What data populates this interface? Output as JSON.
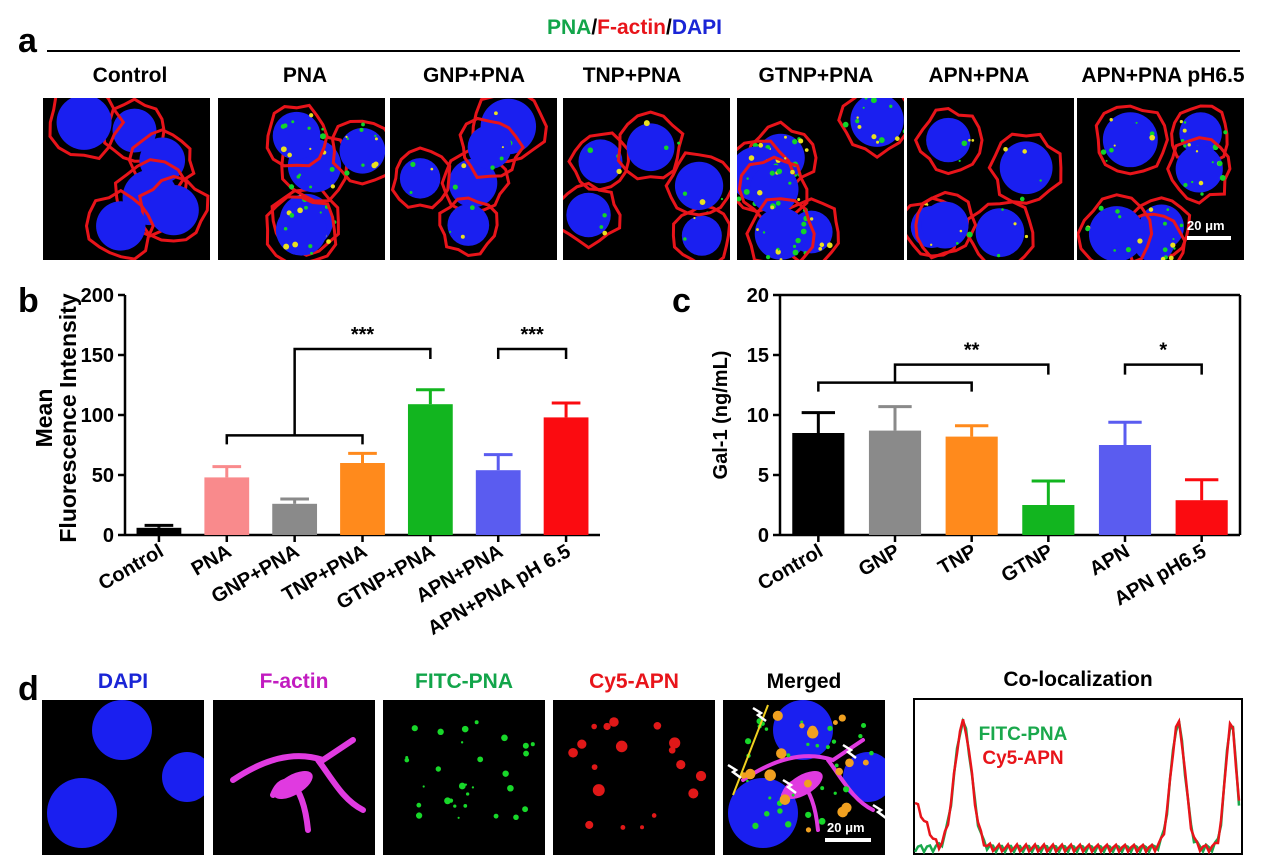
{
  "panel_a": {
    "letter": "a",
    "title_parts": [
      {
        "text": "PNA",
        "color": "#12a54a"
      },
      {
        "text": "/",
        "color": "#000000"
      },
      {
        "text": "F-actin",
        "color": "#e8141a"
      },
      {
        "text": "/",
        "color": "#000000"
      },
      {
        "text": "DAPI",
        "color": "#1a25d6"
      }
    ],
    "columns": [
      "Control",
      "PNA",
      "GNP+PNA",
      "TNP+PNA",
      "GTNP+PNA",
      "APN+PNA",
      "APN+PNA pH6.5"
    ],
    "scale_bar": "20 μm"
  },
  "panel_d": {
    "letter": "d",
    "columns": [
      {
        "label": "DAPI",
        "color": "#1a25d6"
      },
      {
        "label": "F-actin",
        "color": "#c21cc0"
      },
      {
        "label": "FITC-PNA",
        "color": "#12a54a"
      },
      {
        "label": "Cy5-APN",
        "color": "#e8141a"
      },
      {
        "label": "Merged",
        "color": "#000000"
      }
    ],
    "scale_bar": "20 μm",
    "coloc_title": "Co-localization",
    "coloc_legend": [
      {
        "label": "FITC-PNA",
        "color": "#1aa84c"
      },
      {
        "label": "Cy5-APN",
        "color": "#e8141a"
      }
    ]
  },
  "chart_data": [
    {
      "letter": "b",
      "type": "bar",
      "ylabel_lines": [
        "Mean",
        "Fluorescence Intensity"
      ],
      "categories": [
        "Control",
        "PNA",
        "GNP+PNA",
        "TNP+PNA",
        "GTNP+PNA",
        "APN+PNA",
        "APN+PNA pH 6.5"
      ],
      "values": [
        6,
        48,
        26,
        60,
        109,
        54,
        98
      ],
      "errors": [
        2,
        9,
        4,
        8,
        12,
        13,
        12
      ],
      "colors": [
        "#000000",
        "#f98a8c",
        "#8a8a8a",
        "#ff8a1c",
        "#12b51f",
        "#5a5cf0",
        "#fb0b10"
      ],
      "ylim": [
        0,
        200
      ],
      "yticks": [
        0,
        50,
        100,
        150,
        200
      ],
      "significance": [
        {
          "label": "***",
          "from_group": [
            1,
            2,
            3
          ],
          "to": 4
        },
        {
          "label": "***",
          "from": 5,
          "to": 6
        }
      ]
    },
    {
      "letter": "c",
      "type": "bar",
      "ylabel": "Gal-1 (ng/mL)",
      "categories": [
        "Control",
        "GNP",
        "TNP",
        "GTNP",
        "APN",
        "APN pH6.5"
      ],
      "values": [
        8.5,
        8.7,
        8.2,
        2.5,
        7.5,
        2.9
      ],
      "errors": [
        1.7,
        2.0,
        0.9,
        2.0,
        1.9,
        1.7
      ],
      "colors": [
        "#000000",
        "#8a8a8a",
        "#ff8a1c",
        "#12b51f",
        "#5a5cf0",
        "#fb0b10"
      ],
      "ylim": [
        0,
        20
      ],
      "yticks": [
        0,
        5,
        10,
        15,
        20
      ],
      "significance": [
        {
          "label": "**",
          "from_group": [
            0,
            1,
            2
          ],
          "to": 3
        },
        {
          "label": "*",
          "from": 4,
          "to": 5
        }
      ]
    }
  ]
}
